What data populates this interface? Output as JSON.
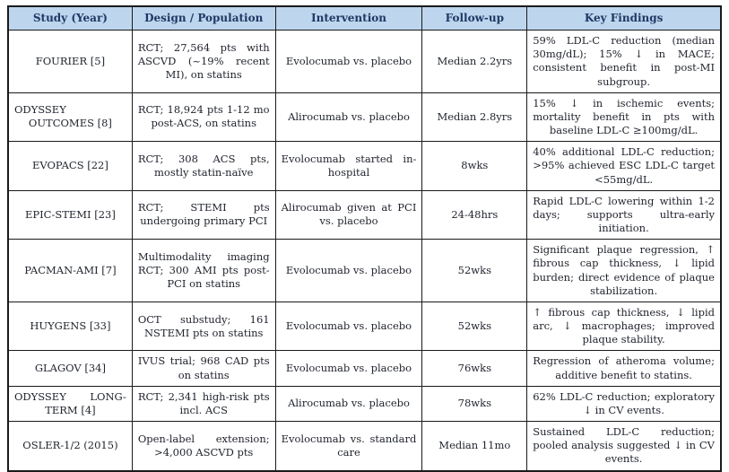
{
  "colors": {
    "header_bg": "#bdd6ee",
    "header_text": "#1f3864",
    "body_text": "#21252e",
    "border": "#1a1a1a",
    "page_bg": "#ffffff"
  },
  "table": {
    "columns": [
      "Study (Year)",
      "Design / Population",
      "Intervention",
      "Follow-up",
      "Key Findings"
    ],
    "rows": [
      {
        "study": "FOURIER [5]",
        "design": "RCT; 27,564 pts with ASCVD (~19% recent MI), on statins",
        "intervention": "Evolocumab vs. placebo",
        "followup": "Median 2.2yrs",
        "findings": "59% LDL-C reduction (median 30mg/dL); 15% ↓ in MACE; consistent benefit in post-MI subgroup."
      },
      {
        "study": "ODYSSEY OUTCOMES [8]",
        "design": "RCT; 18,924 pts 1-12 mo post-ACS, on statins",
        "intervention": "Alirocumab vs. placebo",
        "followup": "Median 2.8yrs",
        "findings": "15% ↓ in ischemic events; mortality benefit in pts with baseline LDL-C ≥100mg/dL."
      },
      {
        "study": "EVOPACS [22]",
        "design": "RCT; 308 ACS pts, mostly statin-naïve",
        "intervention": "Evolocumab started in-hospital",
        "followup": "8wks",
        "findings": "40% additional LDL-C reduction; >95% achieved ESC LDL-C target <55mg/dL."
      },
      {
        "study": "EPIC-STEMI [23]",
        "design": "RCT; STEMI pts undergoing primary PCI",
        "intervention": "Alirocumab given at PCI vs. placebo",
        "followup": "24-48hrs",
        "findings": "Rapid LDL-C lowering within 1-2 days; supports ultra-early initiation."
      },
      {
        "study": "PACMAN-AMI [7]",
        "design": "Multimodality imaging RCT; 300 AMI pts post-PCI on statins",
        "intervention": "Evolocumab vs. placebo",
        "followup": "52wks",
        "findings": "Significant plaque regression, ↑ fibrous cap thickness, ↓ lipid burden; direct evidence of plaque stabilization."
      },
      {
        "study": "HUYGENS [33]",
        "design": "OCT substudy; 161 NSTEMI pts on statins",
        "intervention": "Evolocumab vs. placebo",
        "followup": "52wks",
        "findings": "↑ fibrous cap thickness, ↓ lipid arc, ↓ macrophages; improved plaque stability."
      },
      {
        "study": "GLAGOV [34]",
        "design": "IVUS trial; 968 CAD pts on statins",
        "intervention": "Evolocumab vs. placebo",
        "followup": "76wks",
        "findings": "Regression of atheroma volume; additive benefit to statins."
      },
      {
        "study": "ODYSSEY LONG-TERM [4]",
        "design": "RCT; 2,341 high-risk pts incl. ACS",
        "intervention": "Alirocumab vs. placebo",
        "followup": "78wks",
        "findings": "62% LDL-C reduction; exploratory ↓ in CV events."
      },
      {
        "study": "OSLER-1/2 (2015)",
        "design": "Open-label extension; >4,000 ASCVD pts",
        "intervention": "Evolocumab vs. standard care",
        "followup": "Median 11mo",
        "findings": "Sustained LDL-C reduction; pooled analysis suggested ↓ in CV events."
      }
    ]
  }
}
